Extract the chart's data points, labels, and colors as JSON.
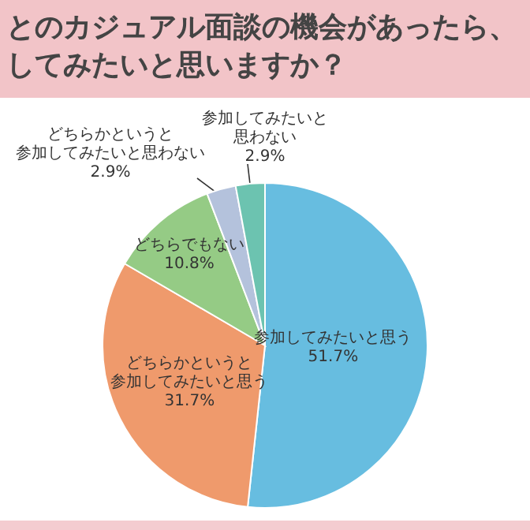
{
  "chart_data": {
    "type": "pie",
    "title": "とのカジュアル面談の機会があったら、してみたいと思いますか？",
    "categories": [
      "参加してみたいと思う",
      "どちらかというと参加してみたいと思う",
      "どちらでもない",
      "どちらかというと参加してみたいと思わない",
      "参加してみたいと思わない"
    ],
    "values": [
      51.7,
      31.7,
      10.8,
      2.9,
      2.9
    ],
    "colors": [
      "#67bde0",
      "#ef9a6c",
      "#95cb85",
      "#b4c2dc",
      "#6cc3b0"
    ],
    "value_labels": [
      "51.7%",
      "31.7%",
      "10.8%",
      "2.9%",
      "2.9%"
    ]
  }
}
